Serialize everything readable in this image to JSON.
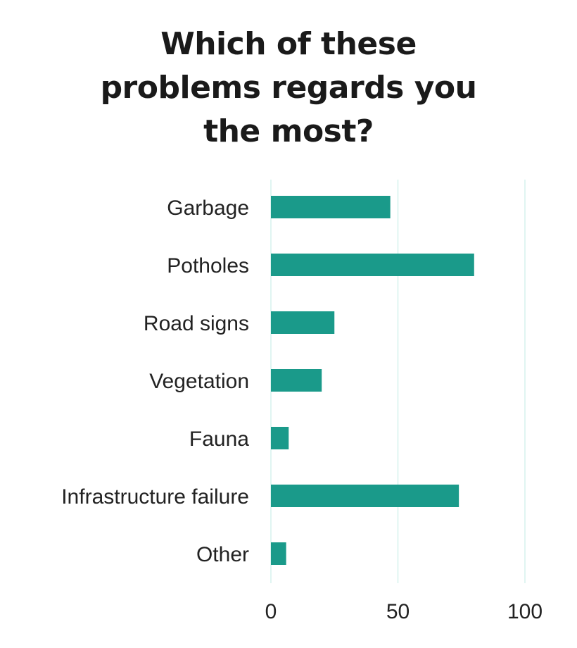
{
  "chart_data": {
    "type": "bar",
    "orientation": "horizontal",
    "title_lines": [
      "Which of these",
      "problems regards you",
      "the most?"
    ],
    "categories": [
      "Garbage",
      "Potholes",
      "Road signs",
      "Vegetation",
      "Fauna",
      "Infrastructure failure",
      "Other"
    ],
    "values": [
      47,
      80,
      25,
      20,
      7,
      74,
      6
    ],
    "xlim": [
      0,
      100
    ],
    "x_ticks": [
      0,
      50,
      100
    ],
    "grid": "vertical",
    "legend": "none",
    "colors": {
      "bar": "#1a9a8a",
      "grid": "#d6f2ee",
      "text": "#222222"
    }
  }
}
